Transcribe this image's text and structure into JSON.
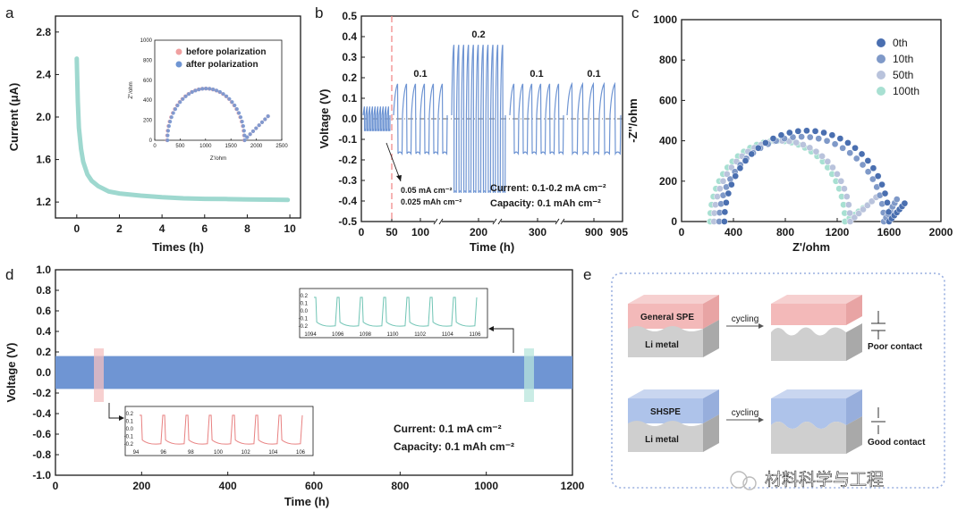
{
  "panel_labels": [
    "a",
    "b",
    "c",
    "d",
    "e"
  ],
  "colors": {
    "teal": "#9ed8cf",
    "blue": "#6f95d3",
    "pink": "#f0a0a0",
    "c0": "#4a6fb0",
    "c10": "#7f99c8",
    "c50": "#b9c3dc",
    "c100": "#a8e0d2",
    "box": "#9ab0e0"
  },
  "watermark": "材料科学与工程",
  "chart_data": [
    {
      "type": "line",
      "panel": "a",
      "xlabel": "Times (h)",
      "ylabel": "Current (μA)",
      "xlim": [
        -1,
        10.5
      ],
      "ylim": [
        1.05,
        2.95
      ],
      "xticks": [
        0,
        2,
        4,
        6,
        8,
        10
      ],
      "yticks": [
        1.2,
        1.6,
        2.0,
        2.4,
        2.8
      ],
      "series": [
        {
          "x": [
            0,
            0.05,
            0.1,
            0.2,
            0.3,
            0.5,
            0.7,
            1.0,
            1.5,
            2,
            3,
            4,
            5,
            6,
            7,
            8,
            9,
            9.9
          ],
          "y": [
            2.55,
            2.15,
            1.9,
            1.7,
            1.58,
            1.46,
            1.4,
            1.35,
            1.3,
            1.28,
            1.26,
            1.245,
            1.235,
            1.23,
            1.228,
            1.225,
            1.222,
            1.22
          ]
        }
      ],
      "inset": {
        "type": "scatter",
        "xlabel": "Z'/ohm",
        "ylabel": "Z''/ohm",
        "xlim": [
          0,
          2500
        ],
        "ylim": [
          0,
          1000
        ],
        "xticks": [
          0,
          500,
          1000,
          1500,
          2000,
          2500
        ],
        "yticks": [
          0,
          200,
          400,
          600,
          800,
          1000
        ],
        "series": [
          {
            "name": "before polarization",
            "center": 1000,
            "radius": 760,
            "tail_end": [
              2230,
              240
            ]
          },
          {
            "name": "after polarization",
            "center": 1000,
            "radius": 760,
            "tail_end": [
              2230,
              240
            ]
          }
        ]
      }
    },
    {
      "type": "line",
      "panel": "b",
      "xlabel": "Time (h)",
      "ylabel": "Voltage (V)",
      "ylim": [
        -0.5,
        0.5
      ],
      "xticks": [
        "0",
        "50",
        "100",
        "200",
        "300",
        "900",
        "905"
      ],
      "yticks": [
        -0.5,
        -0.4,
        -0.3,
        -0.2,
        -0.1,
        0.0,
        0.1,
        0.2,
        0.3,
        0.4,
        0.5
      ],
      "segments": [
        {
          "label": "",
          "amplitude": 0.06
        },
        {
          "label": "0.1",
          "amplitude": 0.17
        },
        {
          "label": "0.2",
          "amplitude": 0.36
        },
        {
          "label": "0.1",
          "amplitude": 0.17
        },
        {
          "label": "0.1",
          "amplitude": 0.17
        }
      ],
      "annotations": {
        "arrow_note_1": "0.05 mA cm⁻²",
        "arrow_note_2": "0.025 mAh cm⁻²",
        "current": "Current: 0.1-0.2 mA cm⁻²",
        "capacity": "Capacity: 0.1 mAh cm⁻²"
      }
    },
    {
      "type": "scatter",
      "panel": "c",
      "xlabel": "Z'/ohm",
      "ylabel": "-Z''/ohm",
      "xlim": [
        0,
        2000
      ],
      "ylim": [
        0,
        1000
      ],
      "xticks": [
        0,
        400,
        800,
        1200,
        1600,
        2000
      ],
      "yticks": [
        0,
        200,
        400,
        600,
        800,
        1000
      ],
      "legend": "top-right",
      "series": [
        {
          "name": "0th",
          "x0": 330,
          "x1": 1600,
          "tail_end": [
            1720,
            90
          ]
        },
        {
          "name": "10th",
          "x0": 290,
          "x1": 1560,
          "tail_end": [
            1660,
            110
          ]
        },
        {
          "name": "50th",
          "x0": 250,
          "x1": 1300,
          "tail_end": [
            1500,
            120
          ]
        },
        {
          "name": "100th",
          "x0": 220,
          "x1": 1260,
          "tail_end": [
            1470,
            100
          ]
        }
      ]
    },
    {
      "type": "line",
      "panel": "d",
      "xlabel": "Time (h)",
      "ylabel": "Voltage (V)",
      "xlim": [
        0,
        1200
      ],
      "ylim": [
        -1.0,
        1.0
      ],
      "xticks": [
        0,
        200,
        400,
        600,
        800,
        1000,
        1200
      ],
      "yticks": [
        -1.0,
        -0.8,
        -0.6,
        -0.4,
        -0.2,
        0.0,
        0.2,
        0.4,
        0.6,
        0.8,
        1.0
      ],
      "band": [
        -0.16,
        0.16
      ],
      "annotations": {
        "current": "Current: 0.1 mA cm⁻²",
        "capacity": "Capacity: 0.1 mAh cm⁻²"
      },
      "inset_early": {
        "xticks": [
          94,
          96,
          98,
          100,
          102,
          104,
          106
        ],
        "yticks": [
          0.2,
          0.1,
          0.0,
          -0.1,
          -0.2
        ]
      },
      "inset_late": {
        "xticks": [
          1094,
          1096,
          1098,
          1100,
          1102,
          1104,
          1106
        ],
        "yticks": [
          0.2,
          0.1,
          0.0,
          -0.1,
          -0.2
        ]
      }
    }
  ],
  "schematic": {
    "top_layer_1": "General SPE",
    "bottom_layer_1": "Li metal",
    "arrow_1": "cycling",
    "result_1": "Poor contact",
    "top_layer_2": "SHSPE",
    "bottom_layer_2": "Li metal",
    "arrow_2": "cycling",
    "result_2": "Good contact"
  }
}
